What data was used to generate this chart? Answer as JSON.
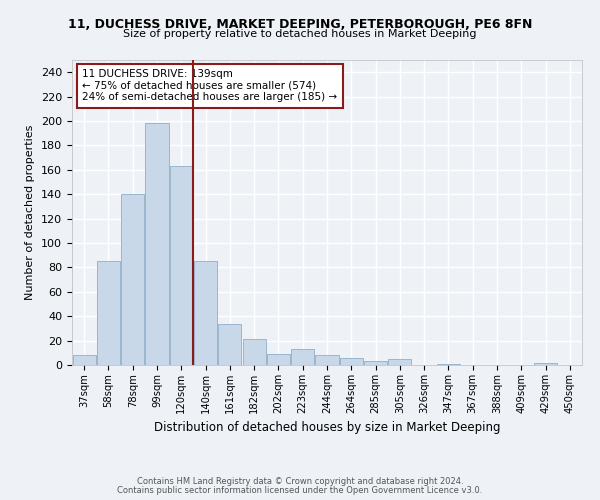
{
  "title": "11, DUCHESS DRIVE, MARKET DEEPING, PETERBOROUGH, PE6 8FN",
  "subtitle": "Size of property relative to detached houses in Market Deeping",
  "xlabel": "Distribution of detached houses by size in Market Deeping",
  "ylabel": "Number of detached properties",
  "bar_labels": [
    "37sqm",
    "58sqm",
    "78sqm",
    "99sqm",
    "120sqm",
    "140sqm",
    "161sqm",
    "182sqm",
    "202sqm",
    "223sqm",
    "244sqm",
    "264sqm",
    "285sqm",
    "305sqm",
    "326sqm",
    "347sqm",
    "367sqm",
    "388sqm",
    "409sqm",
    "429sqm",
    "450sqm"
  ],
  "bar_values": [
    8,
    85,
    140,
    198,
    163,
    85,
    34,
    21,
    9,
    13,
    8,
    6,
    3,
    5,
    0,
    1,
    0,
    0,
    0,
    2,
    0
  ],
  "bar_color": "#c8d8e8",
  "bar_edge_color": "#9ab5cc",
  "vline_color": "#8b1a1a",
  "annotation_title": "11 DUCHESS DRIVE: 139sqm",
  "annotation_line1": "← 75% of detached houses are smaller (574)",
  "annotation_line2": "24% of semi-detached houses are larger (185) →",
  "annotation_box_color": "#8b1a1a",
  "ylim": [
    0,
    250
  ],
  "yticks": [
    0,
    20,
    40,
    60,
    80,
    100,
    120,
    140,
    160,
    180,
    200,
    220,
    240
  ],
  "footer1": "Contains HM Land Registry data © Crown copyright and database right 2024.",
  "footer2": "Contains public sector information licensed under the Open Government Licence v3.0.",
  "bg_color": "#eef2f7",
  "grid_color": "#ffffff"
}
